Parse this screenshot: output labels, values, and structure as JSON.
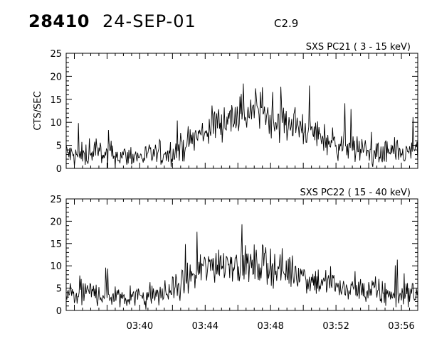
{
  "header": {
    "orbit": "28410",
    "date": "24-SEP-01",
    "flare_class": "C2.9"
  },
  "chart_data": [
    {
      "type": "line",
      "title": "SXS PC21  (  3 - 15 keV)",
      "ylabel": "CTS/SEC",
      "xlabel": "",
      "xlim": [
        "03:35:30",
        "03:57:00"
      ],
      "ylim": [
        0,
        25
      ],
      "yticks": [
        0,
        5,
        10,
        15,
        20,
        25
      ],
      "xticks": [
        "03:40",
        "03:44",
        "03:48",
        "03:52",
        "03:56"
      ],
      "grid": false,
      "series": [
        {
          "x": [
            "03:35:30",
            "03:36:00",
            "03:36:30",
            "03:37:00",
            "03:37:30",
            "03:38:00",
            "03:38:30",
            "03:39:00",
            "03:39:30",
            "03:40:00",
            "03:40:30",
            "03:41:00",
            "03:41:30",
            "03:42:00",
            "03:42:30",
            "03:43:00",
            "03:43:30",
            "03:44:00",
            "03:44:30",
            "03:45:00",
            "03:45:30",
            "03:46:00",
            "03:46:30",
            "03:47:00",
            "03:47:30",
            "03:48:00",
            "03:48:30",
            "03:49:00",
            "03:49:30",
            "03:50:00",
            "03:50:30",
            "03:51:00",
            "03:51:30",
            "03:52:00",
            "03:52:30",
            "03:53:00",
            "03:53:30",
            "03:54:00",
            "03:54:30",
            "03:55:00",
            "03:55:30",
            "03:56:00",
            "03:56:30",
            "03:57:00"
          ],
          "y": [
            3.5,
            2.5,
            2.8,
            3.0,
            3.2,
            3.0,
            2.8,
            2.6,
            2.8,
            2.5,
            2.8,
            3.0,
            3.2,
            3.5,
            4.5,
            5.8,
            7.0,
            8.0,
            9.5,
            10.5,
            11.0,
            11.5,
            12.0,
            12.5,
            12.0,
            11.0,
            10.5,
            10.0,
            9.5,
            9.0,
            8.0,
            7.0,
            6.0,
            5.5,
            5.0,
            4.5,
            4.0,
            3.5,
            3.0,
            3.2,
            3.5,
            3.0,
            3.3,
            4.0
          ]
        }
      ]
    },
    {
      "type": "line",
      "title": "SXS PC22  ( 15 - 40 keV)",
      "ylabel": "",
      "xlabel": "",
      "xlim": [
        "03:35:30",
        "03:57:00"
      ],
      "ylim": [
        0,
        25
      ],
      "yticks": [
        0,
        5,
        10,
        15,
        20,
        25
      ],
      "xticks": [
        "03:40",
        "03:44",
        "03:48",
        "03:52",
        "03:56"
      ],
      "grid": false,
      "series": [
        {
          "x": [
            "03:35:30",
            "03:36:00",
            "03:36:30",
            "03:37:00",
            "03:37:30",
            "03:38:00",
            "03:38:30",
            "03:39:00",
            "03:39:30",
            "03:40:00",
            "03:40:30",
            "03:41:00",
            "03:41:30",
            "03:42:00",
            "03:42:30",
            "03:43:00",
            "03:43:30",
            "03:44:00",
            "03:44:30",
            "03:45:00",
            "03:45:30",
            "03:46:00",
            "03:46:30",
            "03:47:00",
            "03:47:30",
            "03:48:00",
            "03:48:30",
            "03:49:00",
            "03:49:30",
            "03:50:00",
            "03:50:30",
            "03:51:00",
            "03:51:30",
            "03:52:00",
            "03:52:30",
            "03:53:00",
            "03:53:30",
            "03:54:00",
            "03:54:30",
            "03:55:00",
            "03:55:30",
            "03:56:00",
            "03:56:30",
            "03:57:00"
          ],
          "y": [
            3.2,
            3.5,
            3.8,
            4.0,
            3.8,
            3.5,
            3.5,
            3.2,
            3.0,
            3.2,
            3.3,
            3.5,
            3.8,
            4.5,
            5.5,
            7.0,
            8.5,
            9.5,
            10.5,
            11.0,
            11.0,
            10.5,
            10.0,
            10.0,
            10.2,
            10.0,
            9.5,
            9.0,
            8.5,
            8.0,
            7.0,
            6.5,
            6.0,
            5.5,
            5.0,
            4.8,
            4.5,
            4.3,
            4.0,
            3.8,
            3.5,
            3.5,
            3.8,
            4.0
          ]
        }
      ]
    }
  ]
}
